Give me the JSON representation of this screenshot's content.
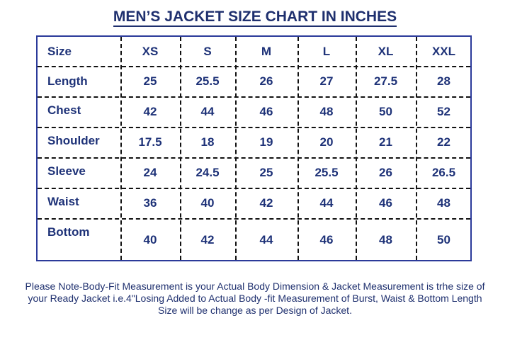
{
  "title": "MEN’S  JACKET SIZE CHART IN INCHES",
  "table": {
    "header": [
      "Size",
      "XS",
      "S",
      "M",
      "L",
      "XL",
      "XXL"
    ],
    "rows": [
      [
        "Length",
        "25",
        "25.5",
        "26",
        "27",
        "27.5",
        "28"
      ],
      [
        "Chest",
        "42",
        "44",
        "46",
        "48",
        "50",
        "52"
      ],
      [
        "Shoulder",
        "17.5",
        "18",
        "19",
        "20",
        "21",
        "22"
      ],
      [
        "Sleeve",
        "24",
        "24.5",
        "25",
        "25.5",
        "26",
        "26.5"
      ],
      [
        "Waist",
        "36",
        "40",
        "42",
        "44",
        "46",
        "48"
      ],
      [
        "Bottom",
        "40",
        "42",
        "44",
        "46",
        "48",
        "50"
      ]
    ]
  },
  "note": "Please Note-Body-Fit Measurement is your Actual Body Dimension & Jacket Measurement is trhe size of your Ready Jacket i.e.4\"Losing Added to Actual Body -fit Measurement of Burst, Waist & Bottom Length Size will be change as per Design of Jacket."
}
